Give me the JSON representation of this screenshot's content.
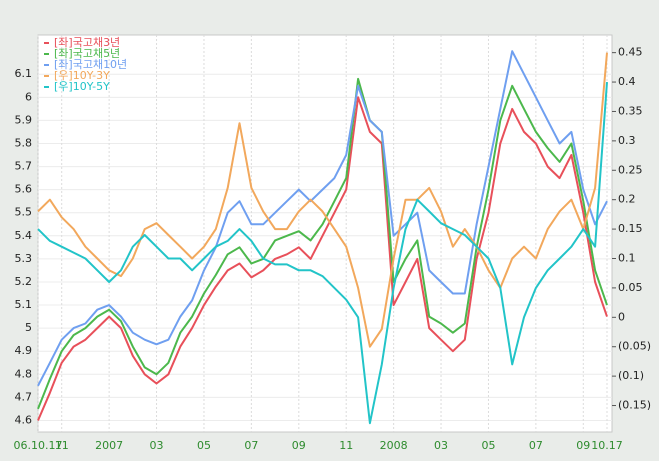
{
  "chart_data": {
    "type": "line",
    "categories": [
      "06.10.17",
      null,
      "11",
      null,
      null,
      null,
      "2007",
      null,
      null,
      null,
      "03",
      null,
      null,
      null,
      "05",
      null,
      null,
      null,
      "07",
      null,
      null,
      null,
      "09",
      null,
      null,
      null,
      "11",
      null,
      null,
      null,
      "2008",
      null,
      null,
      null,
      "03",
      null,
      null,
      null,
      "05",
      null,
      null,
      null,
      "07",
      null,
      null,
      null,
      "09",
      null,
      "10.17"
    ],
    "series": [
      {
        "name": "[좌]국고채3년",
        "color": "#e8505a",
        "axis": "y",
        "values": [
          4.6,
          4.72,
          4.85,
          4.92,
          4.95,
          5.0,
          5.05,
          5.0,
          4.88,
          4.8,
          4.76,
          4.8,
          4.92,
          5.0,
          5.1,
          5.18,
          5.25,
          5.28,
          5.22,
          5.25,
          5.3,
          5.32,
          5.35,
          5.3,
          5.4,
          5.5,
          5.6,
          6.0,
          5.85,
          5.8,
          5.1,
          5.2,
          5.3,
          5.0,
          4.95,
          4.9,
          4.95,
          5.3,
          5.5,
          5.8,
          5.95,
          5.85,
          5.8,
          5.7,
          5.65,
          5.75,
          5.5,
          5.2,
          5.05
        ]
      },
      {
        "name": "[좌]국고채5년",
        "color": "#4cb84c",
        "axis": "y",
        "values": [
          4.65,
          4.78,
          4.9,
          4.97,
          5.0,
          5.05,
          5.08,
          5.03,
          4.92,
          4.83,
          4.8,
          4.85,
          4.98,
          5.05,
          5.15,
          5.23,
          5.32,
          5.35,
          5.28,
          5.3,
          5.38,
          5.4,
          5.42,
          5.38,
          5.45,
          5.55,
          5.65,
          6.08,
          5.9,
          5.85,
          5.2,
          5.3,
          5.38,
          5.05,
          5.02,
          4.98,
          5.02,
          5.35,
          5.6,
          5.9,
          6.05,
          5.95,
          5.85,
          5.78,
          5.72,
          5.8,
          5.55,
          5.25,
          5.1
        ]
      },
      {
        "name": "[좌]국고채10년",
        "color": "#6f9ff0",
        "axis": "y",
        "values": [
          4.75,
          4.85,
          4.95,
          5.0,
          5.02,
          5.08,
          5.1,
          5.05,
          4.98,
          4.95,
          4.93,
          4.95,
          5.05,
          5.12,
          5.25,
          5.35,
          5.5,
          5.55,
          5.45,
          5.45,
          5.5,
          5.55,
          5.6,
          5.55,
          5.6,
          5.65,
          5.75,
          6.05,
          5.9,
          5.85,
          5.4,
          5.45,
          5.5,
          5.25,
          5.2,
          5.15,
          5.15,
          5.45,
          5.7,
          5.95,
          6.2,
          6.1,
          6.0,
          5.9,
          5.8,
          5.85,
          5.6,
          5.45,
          5.55
        ]
      },
      {
        "name": "[우]10Y-3Y",
        "color": "#f2a85c",
        "axis": "y2",
        "values": [
          0.18,
          0.2,
          0.17,
          0.15,
          0.12,
          0.1,
          0.08,
          0.07,
          0.1,
          0.15,
          0.16,
          0.14,
          0.12,
          0.1,
          0.12,
          0.15,
          0.22,
          0.33,
          0.22,
          0.18,
          0.15,
          0.15,
          0.18,
          0.2,
          0.18,
          0.15,
          0.12,
          0.05,
          -0.05,
          -0.02,
          0.1,
          0.2,
          0.2,
          0.22,
          0.18,
          0.12,
          0.15,
          0.12,
          0.08,
          0.05,
          0.1,
          0.12,
          0.1,
          0.15,
          0.18,
          0.2,
          0.15,
          0.22,
          0.45
        ]
      },
      {
        "name": "[우]10Y-5Y",
        "color": "#22c4c8",
        "axis": "y2",
        "values": [
          0.15,
          0.13,
          0.12,
          0.11,
          0.1,
          0.08,
          0.06,
          0.08,
          0.12,
          0.14,
          0.12,
          0.1,
          0.1,
          0.08,
          0.1,
          0.12,
          0.13,
          0.15,
          0.13,
          0.1,
          0.09,
          0.09,
          0.08,
          0.08,
          0.07,
          0.05,
          0.03,
          0.0,
          -0.18,
          -0.08,
          0.05,
          0.15,
          0.2,
          0.18,
          0.16,
          0.15,
          0.14,
          0.12,
          0.1,
          0.05,
          -0.08,
          0.0,
          0.05,
          0.08,
          0.1,
          0.12,
          0.15,
          0.12,
          0.4
        ]
      }
    ],
    "ylim": [
      4.55,
      6.27
    ],
    "yticks": [
      4.6,
      4.7,
      4.8,
      4.9,
      5,
      5.1,
      5.2,
      5.3,
      5.4,
      5.5,
      5.6,
      5.7,
      5.8,
      5.9,
      6,
      6.1
    ],
    "y2lim": [
      -0.195,
      0.48
    ],
    "y2ticks": [
      {
        "value": -0.15,
        "label": "(0.15)"
      },
      {
        "value": -0.1,
        "label": "(0.1)"
      },
      {
        "value": -0.05,
        "label": "(0.05)"
      },
      0,
      0.05,
      0.1,
      0.15,
      0.2,
      0.25,
      0.3,
      0.35,
      0.4,
      0.45
    ],
    "grid": true,
    "legend": "upper left"
  }
}
